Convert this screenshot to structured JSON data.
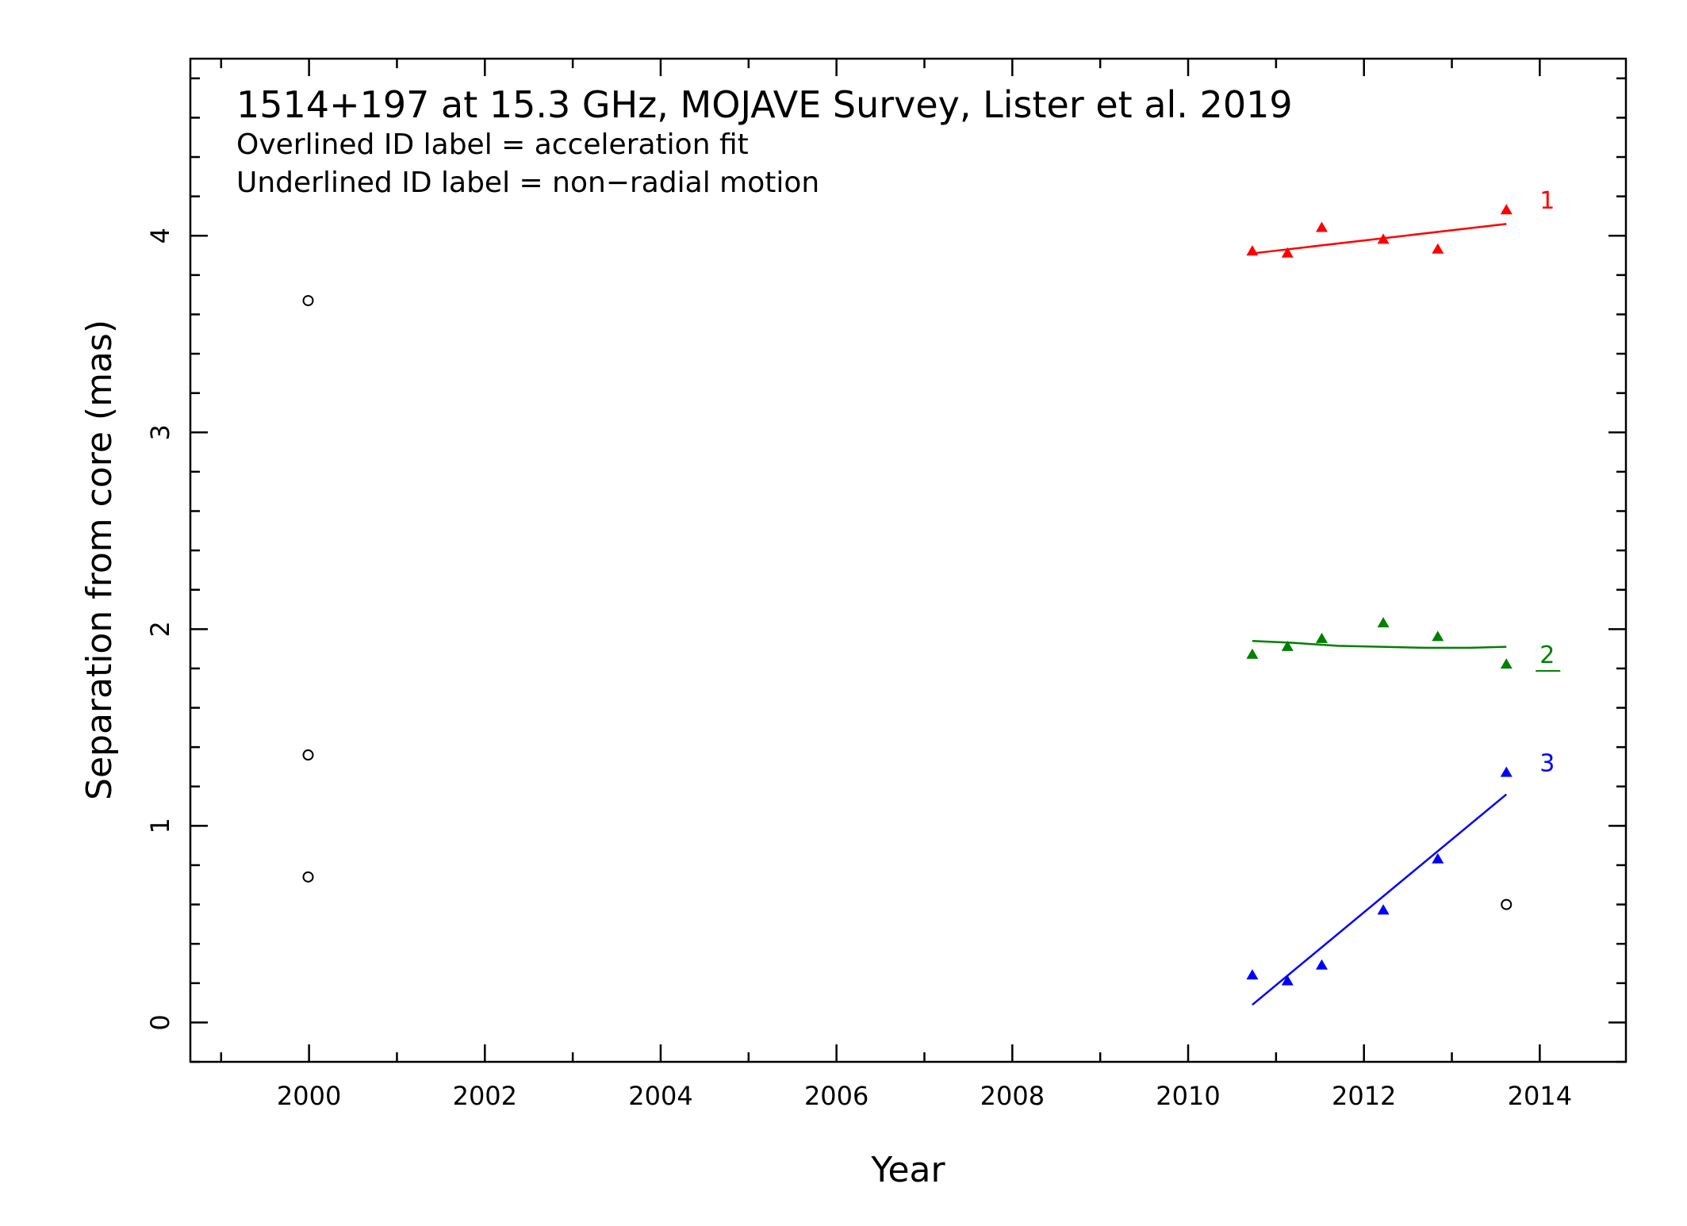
{
  "chart_data": {
    "type": "scatter",
    "title": "1514+197 at 15.3 GHz, MOJAVE Survey, Lister et al. 2019",
    "notes": [
      "Overlined ID label = acceleration fit",
      "Underlined ID label = non−radial motion"
    ],
    "xlabel": "Year",
    "ylabel": "Separation from core (mas)",
    "xlim": [
      1998.65,
      2014.98
    ],
    "ylim": [
      -0.2,
      4.9
    ],
    "xticks_major": [
      2000,
      2002,
      2004,
      2006,
      2008,
      2010,
      2012,
      2014
    ],
    "xtick_labels": [
      "2000",
      "2002",
      "2004",
      "2006",
      "2008",
      "2010",
      "2012",
      "2014"
    ],
    "yticks_major": [
      0,
      1,
      2,
      3,
      4
    ],
    "ytick_labels": [
      "0",
      "1",
      "2",
      "3",
      "4"
    ],
    "grid": false,
    "series": [
      {
        "name": "1",
        "color": "#ff0000",
        "marker": "triangle",
        "label_style": "plain",
        "x": [
          2010.73,
          2011.13,
          2011.52,
          2012.22,
          2012.84,
          2013.62
        ],
        "y": [
          3.92,
          3.91,
          4.04,
          3.98,
          3.93,
          4.13
        ],
        "fit": {
          "x": [
            2010.73,
            2013.62
          ],
          "y": [
            3.91,
            4.06
          ]
        }
      },
      {
        "name": "2",
        "color": "#008000",
        "marker": "triangle",
        "label_style": "underline",
        "x": [
          2010.73,
          2011.13,
          2011.52,
          2012.22,
          2012.84,
          2013.62
        ],
        "y": [
          1.87,
          1.91,
          1.95,
          2.03,
          1.96,
          1.82
        ],
        "fit": {
          "x": [
            2010.73,
            2011.2,
            2011.7,
            2012.2,
            2012.7,
            2013.2,
            2013.62
          ],
          "y": [
            1.94,
            1.93,
            1.915,
            1.91,
            1.905,
            1.905,
            1.91
          ]
        }
      },
      {
        "name": "3",
        "color": "#0000ff",
        "marker": "triangle",
        "label_style": "plain",
        "x": [
          2010.73,
          2011.13,
          2011.52,
          2012.22,
          2012.84,
          2013.62
        ],
        "y": [
          0.24,
          0.21,
          0.29,
          0.57,
          0.83,
          1.27
        ],
        "fit": {
          "x": [
            2010.73,
            2013.62
          ],
          "y": [
            0.09,
            1.16
          ]
        }
      },
      {
        "name": "",
        "color": "#000000",
        "marker": "circle",
        "x": [
          1999.99,
          1999.99,
          1999.99,
          2013.62
        ],
        "y": [
          3.67,
          1.36,
          0.74,
          0.6
        ]
      }
    ]
  }
}
